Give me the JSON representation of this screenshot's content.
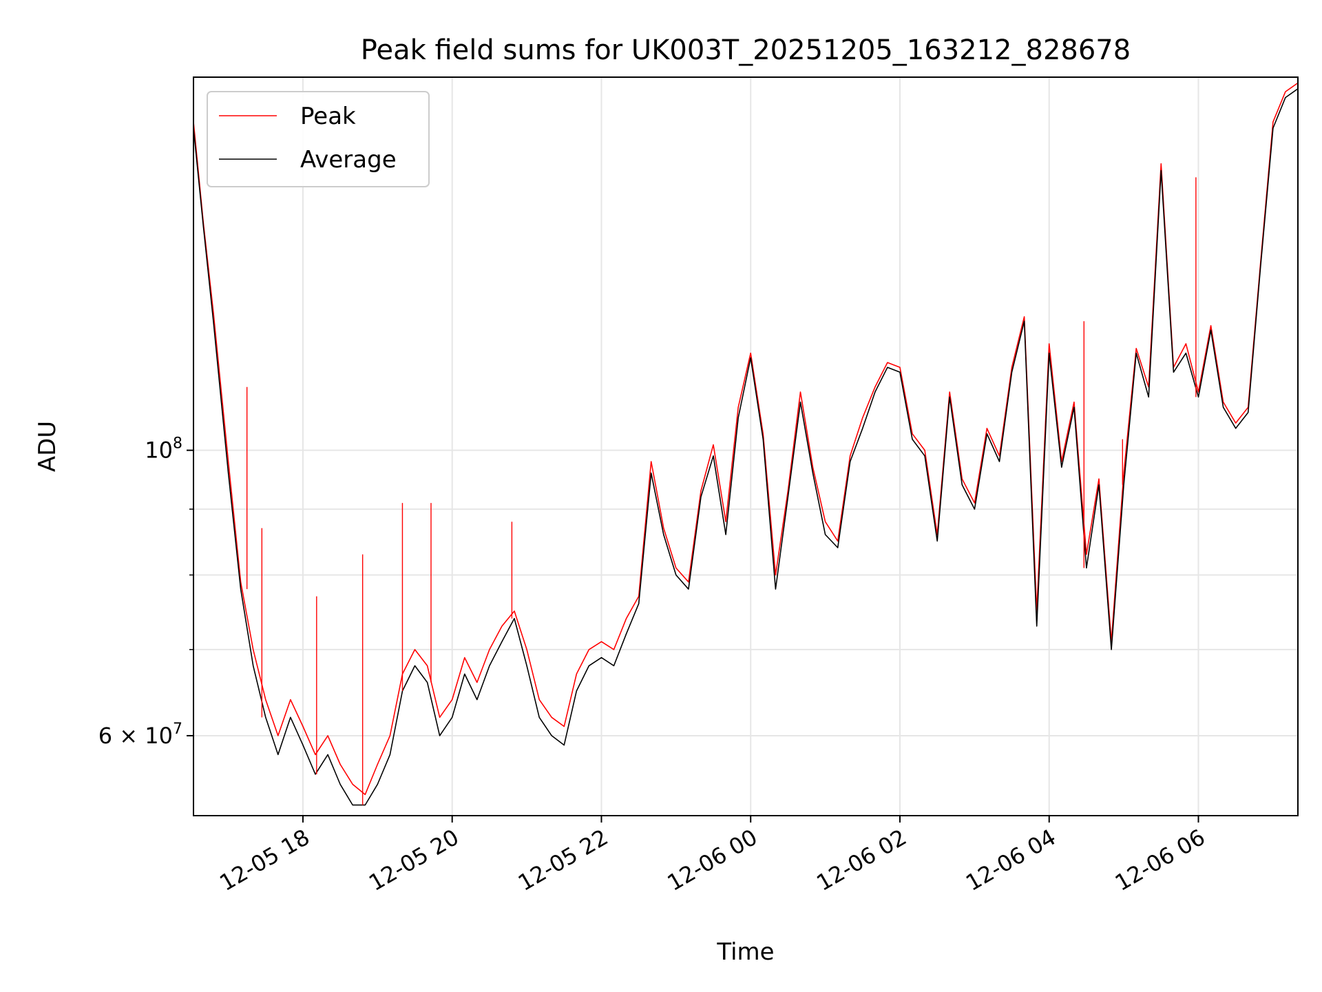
{
  "chart_data": {
    "type": "line",
    "title": "Peak field sums for UK003T_20251205_163212_828678",
    "xlabel": "Time",
    "ylabel": "ADU",
    "yscale": "log",
    "ylim": [
      52000000,
      195000000
    ],
    "xlim": [
      "2025-12-05 16:32",
      "2025-12-06 07:20"
    ],
    "grid": true,
    "legend_position": "upper-left",
    "x_ticks": [
      "12-05 18",
      "12-05 20",
      "12-05 22",
      "12-06 00",
      "12-06 02",
      "12-06 04",
      "12-06 06"
    ],
    "y_ticks": [
      {
        "value": 100000000,
        "base": "10",
        "exp": "8"
      },
      {
        "value": 60000000,
        "base": "6 × 10",
        "exp": "7"
      }
    ],
    "colors": {
      "Peak": "#ff0000",
      "Average": "#000000",
      "grid": "#e6e6e6"
    },
    "x": [
      "2025-12-05 16:32",
      "2025-12-05 16:40",
      "2025-12-05 16:48",
      "2025-12-05 17:00",
      "2025-12-05 17:10",
      "2025-12-05 17:20",
      "2025-12-05 17:30",
      "2025-12-05 17:40",
      "2025-12-05 17:50",
      "2025-12-05 18:00",
      "2025-12-05 18:10",
      "2025-12-05 18:20",
      "2025-12-05 18:30",
      "2025-12-05 18:40",
      "2025-12-05 18:50",
      "2025-12-05 19:00",
      "2025-12-05 19:10",
      "2025-12-05 19:20",
      "2025-12-05 19:30",
      "2025-12-05 19:40",
      "2025-12-05 19:50",
      "2025-12-05 20:00",
      "2025-12-05 20:10",
      "2025-12-05 20:20",
      "2025-12-05 20:30",
      "2025-12-05 20:40",
      "2025-12-05 20:50",
      "2025-12-05 21:00",
      "2025-12-05 21:10",
      "2025-12-05 21:20",
      "2025-12-05 21:30",
      "2025-12-05 21:40",
      "2025-12-05 21:50",
      "2025-12-05 22:00",
      "2025-12-05 22:10",
      "2025-12-05 22:20",
      "2025-12-05 22:30",
      "2025-12-05 22:40",
      "2025-12-05 22:50",
      "2025-12-05 23:00",
      "2025-12-05 23:10",
      "2025-12-05 23:20",
      "2025-12-05 23:30",
      "2025-12-05 23:40",
      "2025-12-05 23:50",
      "2025-12-06 00:00",
      "2025-12-06 00:10",
      "2025-12-06 00:20",
      "2025-12-06 00:30",
      "2025-12-06 00:40",
      "2025-12-06 00:50",
      "2025-12-06 01:00",
      "2025-12-06 01:10",
      "2025-12-06 01:20",
      "2025-12-06 01:30",
      "2025-12-06 01:40",
      "2025-12-06 01:50",
      "2025-12-06 02:00",
      "2025-12-06 02:10",
      "2025-12-06 02:20",
      "2025-12-06 02:30",
      "2025-12-06 02:40",
      "2025-12-06 02:50",
      "2025-12-06 03:00",
      "2025-12-06 03:10",
      "2025-12-06 03:20",
      "2025-12-06 03:30",
      "2025-12-06 03:40",
      "2025-12-06 03:50",
      "2025-12-06 04:00",
      "2025-12-06 04:10",
      "2025-12-06 04:20",
      "2025-12-06 04:30",
      "2025-12-06 04:40",
      "2025-12-06 04:50",
      "2025-12-06 05:00",
      "2025-12-06 05:10",
      "2025-12-06 05:20",
      "2025-12-06 05:30",
      "2025-12-06 05:40",
      "2025-12-06 05:50",
      "2025-12-06 06:00",
      "2025-12-06 06:10",
      "2025-12-06 06:20",
      "2025-12-06 06:30",
      "2025-12-06 06:40",
      "2025-12-06 06:50",
      "2025-12-06 07:00",
      "2025-12-06 07:10",
      "2025-12-06 07:20"
    ],
    "series": [
      {
        "name": "Peak",
        "values": [
          180000000,
          150000000,
          128000000,
          98000000,
          79000000,
          70000000,
          64000000,
          60000000,
          64000000,
          61000000,
          58000000,
          60000000,
          57000000,
          55000000,
          54000000,
          57000000,
          60000000,
          67000000,
          70000000,
          68000000,
          62000000,
          64000000,
          69000000,
          66000000,
          70000000,
          73000000,
          75000000,
          70000000,
          64000000,
          62000000,
          61000000,
          67000000,
          70000000,
          71000000,
          70000000,
          74000000,
          77000000,
          98000000,
          87000000,
          81000000,
          79000000,
          93000000,
          101000000,
          88000000,
          108000000,
          119000000,
          103000000,
          80000000,
          93000000,
          111000000,
          97000000,
          88000000,
          85000000,
          99000000,
          106000000,
          112000000,
          117000000,
          116000000,
          103000000,
          100000000,
          86000000,
          111000000,
          95000000,
          91000000,
          104000000,
          99000000,
          116000000,
          127000000,
          75000000,
          121000000,
          98000000,
          109000000,
          83000000,
          95000000,
          71000000,
          96000000,
          120000000,
          112000000,
          167000000,
          116000000,
          121000000,
          111000000,
          125000000,
          109000000,
          105000000,
          108000000,
          140000000,
          180000000,
          190000000,
          193000000
        ],
        "spikes": [
          {
            "x": "2025-12-05 17:15",
            "value": 112000000
          },
          {
            "x": "2025-12-05 17:27",
            "value": 87000000
          },
          {
            "x": "2025-12-05 18:11",
            "value": 77000000
          },
          {
            "x": "2025-12-05 18:48",
            "value": 83000000
          },
          {
            "x": "2025-12-05 19:20",
            "value": 91000000
          },
          {
            "x": "2025-12-05 19:43",
            "value": 91000000
          },
          {
            "x": "2025-12-05 20:48",
            "value": 88000000
          },
          {
            "x": "2025-12-06 04:28",
            "value": 126000000
          },
          {
            "x": "2025-12-06 04:59",
            "value": 102000000
          },
          {
            "x": "2025-12-06 05:58",
            "value": 163000000
          }
        ]
      },
      {
        "name": "Average",
        "values": [
          178000000,
          149000000,
          126000000,
          96000000,
          78000000,
          68000000,
          62000000,
          58000000,
          62000000,
          59000000,
          56000000,
          58000000,
          55000000,
          53000000,
          53000000,
          55000000,
          58000000,
          65000000,
          68000000,
          66000000,
          60000000,
          62000000,
          67000000,
          64000000,
          68000000,
          71000000,
          74000000,
          68000000,
          62000000,
          60000000,
          59000000,
          65000000,
          68000000,
          69000000,
          68000000,
          72000000,
          76000000,
          96000000,
          86000000,
          80000000,
          78000000,
          92000000,
          99000000,
          86000000,
          106000000,
          118000000,
          102000000,
          78000000,
          92000000,
          109000000,
          96000000,
          86000000,
          84000000,
          98000000,
          104000000,
          111000000,
          116000000,
          115000000,
          102000000,
          99000000,
          85000000,
          110000000,
          94000000,
          90000000,
          103000000,
          98000000,
          115000000,
          126000000,
          73000000,
          119000000,
          97000000,
          108000000,
          81000000,
          94000000,
          70000000,
          94000000,
          119000000,
          110000000,
          165000000,
          115000000,
          119000000,
          110000000,
          124000000,
          108000000,
          104000000,
          107000000,
          139000000,
          178000000,
          188000000,
          191000000
        ]
      }
    ]
  }
}
